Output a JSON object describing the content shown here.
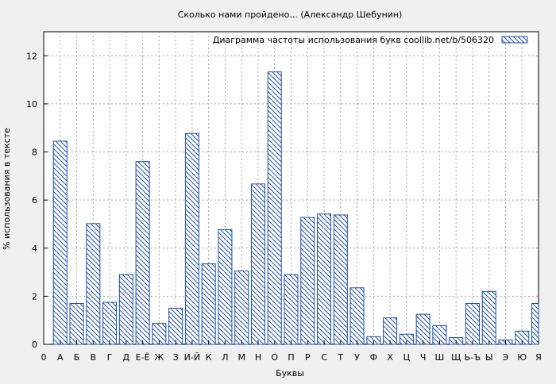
{
  "chart_data": {
    "type": "bar",
    "title": "Сколько нами пройдено... (Александр Шебунин)",
    "xlabel": "Буквы",
    "ylabel": "% использования в тексте",
    "legend_label": "Диаграмма частоты использования букв  coollib.net/b/506320",
    "legend_position": "top-right",
    "grid": true,
    "xlim": [
      0,
      30
    ],
    "ylim": [
      0,
      13
    ],
    "yticks": [
      0,
      2,
      4,
      6,
      8,
      10,
      12
    ],
    "xtick_labels": [
      "0",
      "А",
      "Б",
      "В",
      "Г",
      "Д",
      "Е-Ё",
      "Ж",
      "З",
      "И-Й",
      "К",
      "Л",
      "М",
      "Н",
      "О",
      "П",
      "Р",
      "С",
      "Т",
      "У",
      "Ф",
      "Х",
      "Ц",
      "Ч",
      "Ш",
      "Щ",
      "Ь-Ъ",
      "Ы",
      "Э",
      "Ю",
      "Я"
    ],
    "categories": [
      "А",
      "Б",
      "В",
      "Г",
      "Д",
      "Е-Ё",
      "Ж",
      "З",
      "И-Й",
      "К",
      "Л",
      "М",
      "Н",
      "О",
      "П",
      "Р",
      "С",
      "Т",
      "У",
      "Ф",
      "Х",
      "Ц",
      "Ч",
      "Ш",
      "Щ",
      "Ь-Ъ",
      "Ы",
      "Э",
      "Ю",
      "Я"
    ],
    "values": [
      8.45,
      1.7,
      5.02,
      1.75,
      2.9,
      7.6,
      0.87,
      1.5,
      8.77,
      3.35,
      4.77,
      3.05,
      6.67,
      11.33,
      2.9,
      5.28,
      5.42,
      5.38,
      2.35,
      0.32,
      1.1,
      0.42,
      1.25,
      0.78,
      0.28,
      1.7,
      2.2,
      0.18,
      0.55,
      1.7
    ],
    "colors": {
      "bar_stroke": "#1f4ea8",
      "hatch": "#1f4ea8",
      "plot_bg": "#ffffff",
      "page_bg": "#f0f0f0",
      "grid": "#a0a0a0"
    }
  }
}
